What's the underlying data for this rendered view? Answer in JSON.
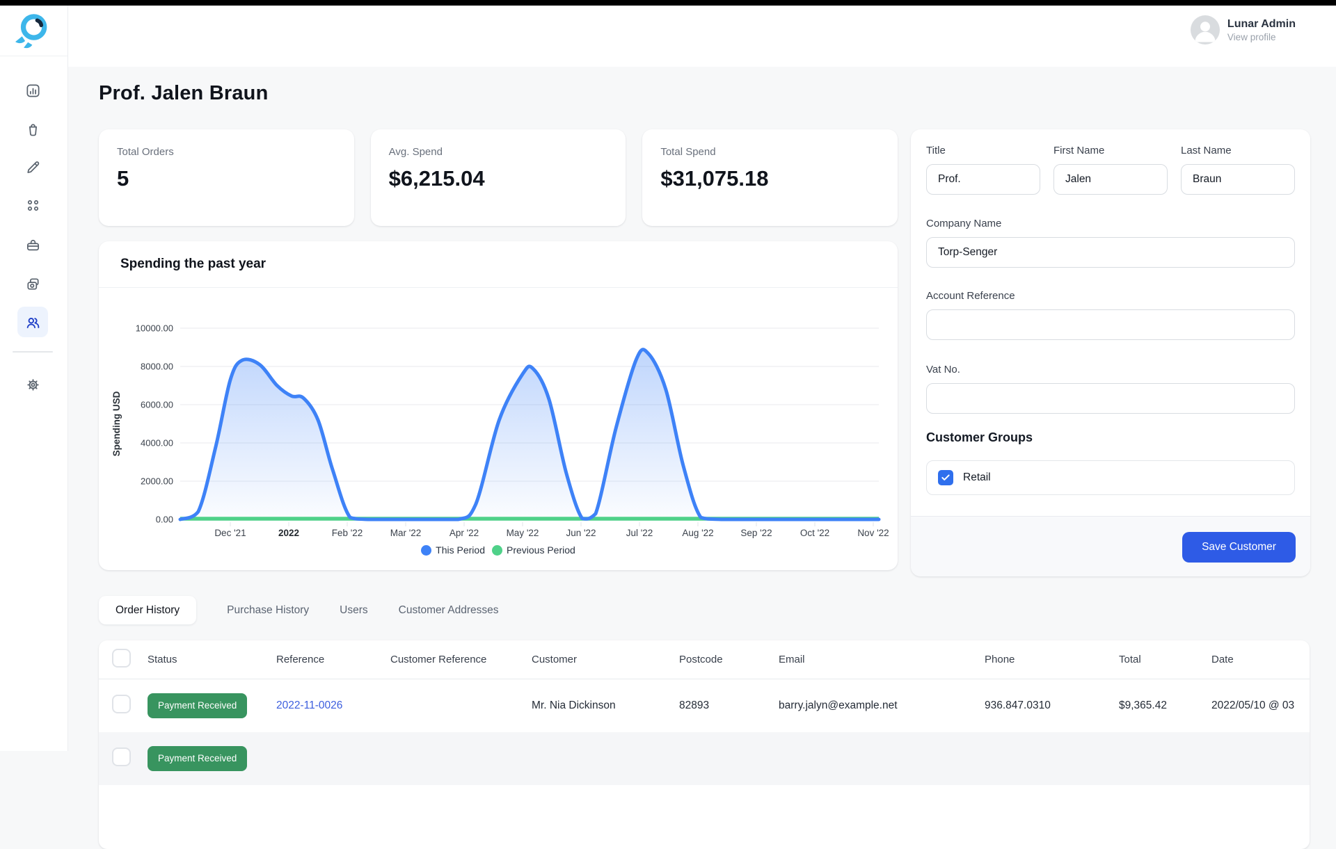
{
  "topbar": {
    "user_name": "Lunar Admin",
    "user_link": "View profile"
  },
  "sidebar": {
    "items": [
      "dashboard",
      "orders",
      "edit",
      "categories",
      "products",
      "media",
      "customers",
      "settings"
    ],
    "active_item": "customers"
  },
  "page": {
    "title": "Prof. Jalen Braun"
  },
  "stats": [
    {
      "label": "Total Orders",
      "value": "5"
    },
    {
      "label": "Avg. Spend",
      "value": "$6,215.04"
    },
    {
      "label": "Total Spend",
      "value": "$31,075.18"
    }
  ],
  "chart_data": {
    "type": "area",
    "title": "Spending the past year",
    "ylabel": "Spending USD",
    "ylim": [
      0,
      10000
    ],
    "yticks": [
      "0.00",
      "2000.00",
      "4000.00",
      "6000.00",
      "8000.00",
      "10000.00"
    ],
    "categories": [
      "Dec '21",
      "2022",
      "Feb '22",
      "Mar '22",
      "Apr '22",
      "May '22",
      "Jun '22",
      "Jul '22",
      "Aug '22",
      "Sep '22",
      "Oct '22",
      "Nov '22"
    ],
    "bold_category": "2022",
    "grid": true,
    "legend_position": "bottom",
    "series": [
      {
        "name": "This Period",
        "color": "#3e82f7",
        "fill": "gradient",
        "monthly_values": [
          0,
          8320,
          0,
          0,
          0,
          7880,
          0,
          8680,
          0,
          0,
          0,
          0
        ],
        "shape_points": [
          [
            -0.86,
            0
          ],
          [
            -0.55,
            400
          ],
          [
            -0.25,
            3800
          ],
          [
            0,
            7300
          ],
          [
            0.2,
            8320
          ],
          [
            0.5,
            8100
          ],
          [
            0.8,
            7000
          ],
          [
            1.05,
            6450
          ],
          [
            1.25,
            6350
          ],
          [
            1.5,
            5200
          ],
          [
            1.75,
            2600
          ],
          [
            2.05,
            100
          ],
          [
            2.4,
            0
          ],
          [
            3.2,
            0
          ],
          [
            3.9,
            0
          ],
          [
            4.2,
            800
          ],
          [
            4.6,
            5200
          ],
          [
            5,
            7600
          ],
          [
            5.18,
            7880
          ],
          [
            5.45,
            6300
          ],
          [
            5.75,
            2400
          ],
          [
            6.02,
            50
          ],
          [
            6.25,
            300
          ],
          [
            6.6,
            4800
          ],
          [
            6.95,
            8400
          ],
          [
            7.15,
            8680
          ],
          [
            7.45,
            6800
          ],
          [
            7.75,
            2800
          ],
          [
            8.05,
            100
          ],
          [
            8.4,
            0
          ],
          [
            9,
            0
          ],
          [
            10,
            0
          ],
          [
            11.1,
            0
          ]
        ]
      },
      {
        "name": "Previous Period",
        "color": "#4fd189",
        "monthly_values": [
          0,
          0,
          0,
          0,
          0,
          0,
          0,
          0,
          0,
          0,
          0,
          0
        ]
      }
    ]
  },
  "form": {
    "fields": [
      {
        "label": "Title",
        "value": "Prof."
      },
      {
        "label": "First Name",
        "value": "Jalen"
      },
      {
        "label": "Last Name",
        "value": "Braun"
      },
      {
        "label": "Company Name",
        "value": "Torp-Senger"
      },
      {
        "label": "Account Reference",
        "value": ""
      },
      {
        "label": "Vat No.",
        "value": ""
      }
    ],
    "groups_heading": "Customer Groups",
    "groups": [
      {
        "label": "Retail",
        "checked": true
      }
    ],
    "save_label": "Save Customer"
  },
  "tabs": [
    {
      "label": "Order History",
      "active": true
    },
    {
      "label": "Purchase History",
      "active": false
    },
    {
      "label": "Users",
      "active": false
    },
    {
      "label": "Customer Addresses",
      "active": false
    }
  ],
  "table": {
    "headers": [
      "Status",
      "Reference",
      "Customer Reference",
      "Customer",
      "Postcode",
      "Email",
      "Phone",
      "Total",
      "Date"
    ],
    "rows": [
      {
        "status": "Payment Received",
        "reference": "2022-11-0026",
        "customer_reference": "",
        "customer": "Mr. Nia Dickinson",
        "postcode": "82893",
        "email": "barry.jalyn@example.net",
        "phone": "936.847.0310",
        "total": "$9,365.42",
        "date": "2022/05/10 @ 03"
      },
      {
        "status": "Payment Received",
        "reference": "",
        "customer_reference": "",
        "customer": "",
        "postcode": "",
        "email": "",
        "phone": "",
        "total": "",
        "date": ""
      }
    ]
  },
  "colors": {
    "accent_blue": "#2e5be6",
    "link_blue": "#3c5ede",
    "badge_green": "#38945f",
    "line_blue": "#3e82f7",
    "line_green": "#4fd189",
    "sidebar_active_blue": "#2040c8"
  }
}
